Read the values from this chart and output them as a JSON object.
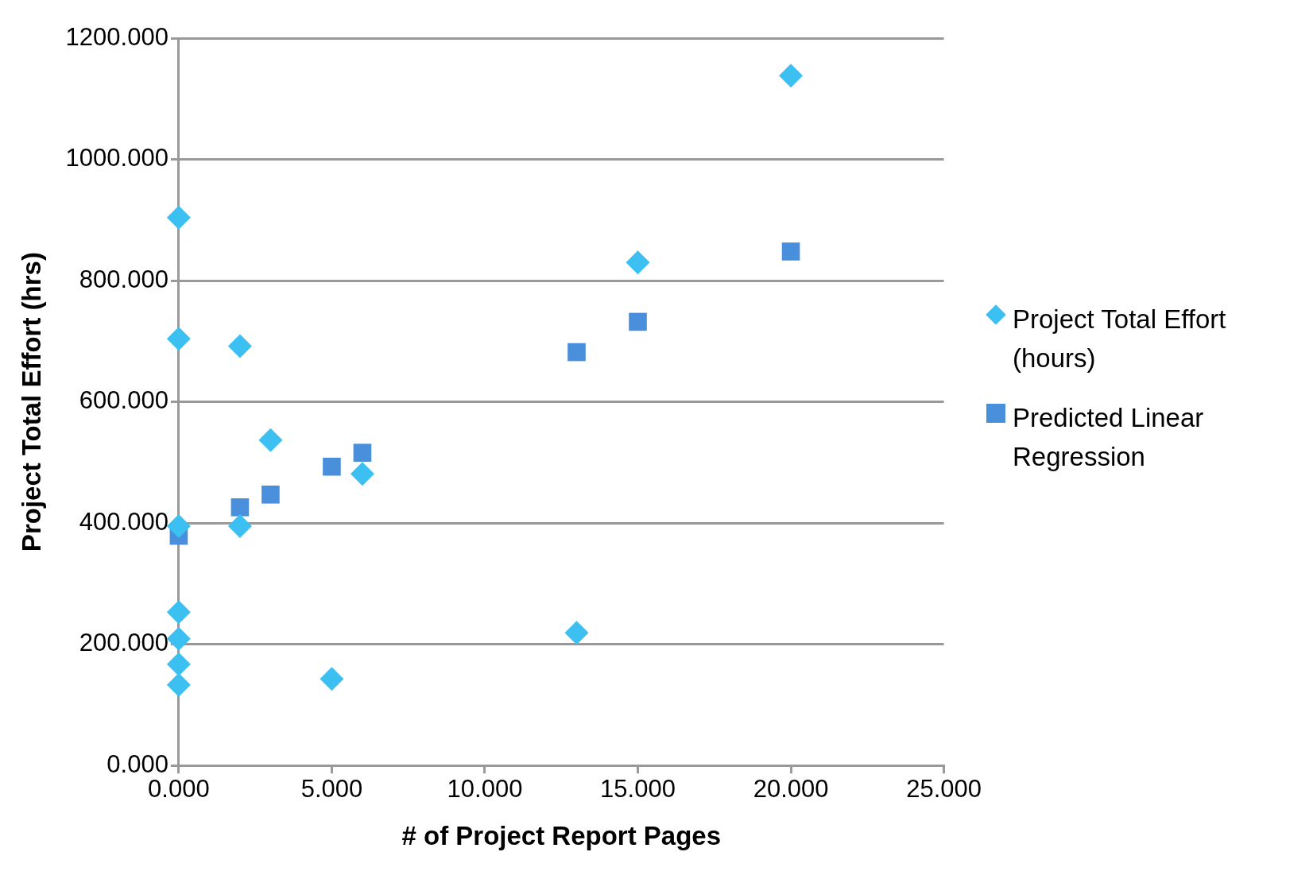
{
  "chart_data": {
    "type": "scatter",
    "xlabel": "# of Project Report Pages",
    "ylabel": "Project Total Effort (hrs)",
    "xlim": [
      0,
      25
    ],
    "xticks": [
      {
        "value": 0,
        "label": "0.000"
      },
      {
        "value": 5,
        "label": "5.000"
      },
      {
        "value": 10,
        "label": "10.000"
      },
      {
        "value": 15,
        "label": "15.000"
      },
      {
        "value": 20,
        "label": "20.000"
      },
      {
        "value": 25,
        "label": "25.000"
      }
    ],
    "ylim": [
      0,
      1200
    ],
    "yticks": [
      {
        "value": 0,
        "label": "0.000"
      },
      {
        "value": 200,
        "label": "200.000"
      },
      {
        "value": 400,
        "label": "400.000"
      },
      {
        "value": 600,
        "label": "600.000"
      },
      {
        "value": 800,
        "label": "800.000"
      },
      {
        "value": 1000,
        "label": "1000.000"
      },
      {
        "value": 1200,
        "label": "1200.000"
      }
    ],
    "grid": "y",
    "legend": "right",
    "series": [
      {
        "name": "Project Total Effort (hours)",
        "color": "#3cc0f2",
        "marker": "diamond",
        "x": [
          0,
          0,
          0,
          0,
          0,
          0,
          0,
          2,
          2,
          3,
          5,
          6,
          13,
          15,
          20
        ],
        "values": [
          904,
          704,
          395,
          253,
          209,
          167,
          133,
          692,
          395,
          537,
          143,
          481,
          219,
          830,
          1138
        ]
      },
      {
        "name": "Predicted Linear Regression",
        "color": "#4a8fdc",
        "marker": "square",
        "x": [
          0,
          2,
          3,
          5,
          6,
          13,
          15,
          20
        ],
        "values": [
          379,
          426,
          447,
          493,
          516,
          682,
          732,
          848
        ]
      }
    ]
  }
}
